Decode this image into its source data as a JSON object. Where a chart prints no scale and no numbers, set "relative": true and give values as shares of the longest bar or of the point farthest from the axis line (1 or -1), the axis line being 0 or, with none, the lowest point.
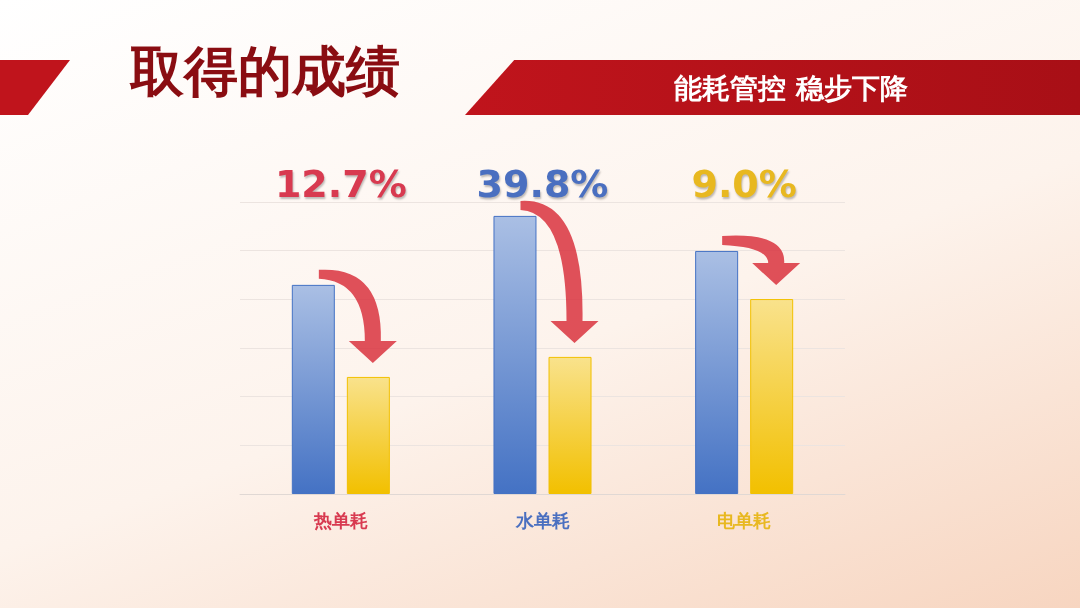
{
  "chart_data": {
    "type": "bar",
    "title": "取得的成绩",
    "subtitle": "能耗管控 稳步下降",
    "categories": [
      "热单耗",
      "水单耗",
      "电单耗"
    ],
    "series": [
      {
        "color": "#4472c4",
        "values": [
          0.752,
          1,
          0.874
        ]
      },
      {
        "color": "#f2c000",
        "values": [
          0.421,
          0.493,
          0.701
        ]
      }
    ],
    "relative": true,
    "grid": true,
    "annotations": [
      "12.7%",
      "39.8%",
      "9.0%"
    ]
  }
}
